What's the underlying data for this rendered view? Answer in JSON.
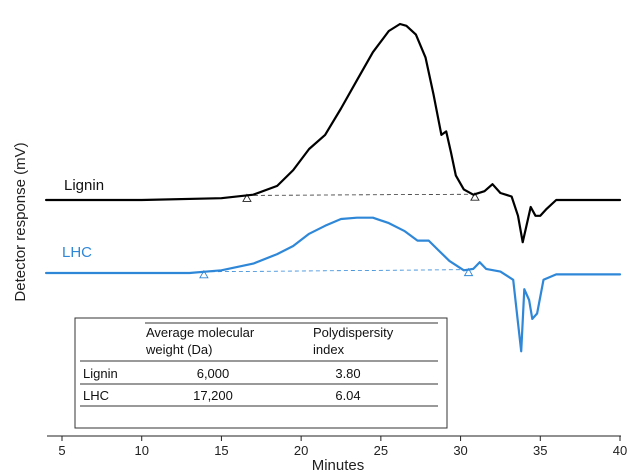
{
  "chart_data": {
    "type": "line",
    "xlabel": "Minutes",
    "ylabel": "Detector response (mV)",
    "xlim": [
      4,
      40
    ],
    "xticks": [
      5,
      10,
      15,
      20,
      25,
      30,
      35,
      40
    ],
    "grid": false,
    "series": [
      {
        "name": "Lignin",
        "color": "#000000",
        "x": [
          4,
          10,
          15,
          17,
          18.5,
          19.5,
          20.5,
          21.5,
          22.5,
          23.5,
          24.5,
          25.5,
          26.2,
          26.6,
          27.2,
          27.8,
          28.3,
          28.8,
          29.1,
          29.4,
          29.7,
          30.2,
          30.8,
          31.5,
          32,
          32.5,
          33.2,
          33.6,
          33.9,
          34.1,
          34.4,
          34.7,
          35.0,
          35.4,
          36,
          40
        ],
        "y": [
          0.0,
          0.0,
          0.01,
          0.03,
          0.08,
          0.17,
          0.29,
          0.37,
          0.52,
          0.68,
          0.84,
          0.96,
          1.0,
          0.99,
          0.94,
          0.81,
          0.6,
          0.37,
          0.39,
          0.27,
          0.14,
          0.06,
          0.03,
          0.05,
          0.09,
          0.04,
          0.02,
          -0.09,
          -0.24,
          -0.16,
          -0.04,
          -0.09,
          -0.09,
          -0.05,
          0.0,
          0.0
        ]
      },
      {
        "name": "LHC",
        "color": "#2f87d8",
        "x": [
          4,
          10,
          13,
          15,
          17,
          18.5,
          19.5,
          20.5,
          21.5,
          22.5,
          23.5,
          24.5,
          25.5,
          26.5,
          27.3,
          28,
          28.6,
          29.3,
          30.2,
          30.8,
          31.2,
          31.6,
          32.5,
          33.3,
          33.6,
          33.8,
          34.0,
          34.3,
          34.5,
          34.8,
          35.2,
          36,
          40
        ],
        "y": [
          0.0,
          0.0,
          0.0,
          0.02,
          0.07,
          0.14,
          0.2,
          0.29,
          0.35,
          0.4,
          0.41,
          0.41,
          0.37,
          0.31,
          0.24,
          0.24,
          0.17,
          0.09,
          0.02,
          0.03,
          0.08,
          0.03,
          0.01,
          -0.05,
          -0.37,
          -0.58,
          -0.12,
          -0.2,
          -0.34,
          -0.3,
          -0.05,
          -0.01,
          -0.01
        ]
      }
    ],
    "baselines": [
      {
        "series": "Lignin",
        "x": [
          16.6,
          30.9
        ]
      },
      {
        "series": "LHC",
        "x": [
          13.9,
          30.5
        ]
      }
    ],
    "table": {
      "header": [
        "",
        "Average molecular weight (Da)",
        "Polydispersity index"
      ],
      "rows": [
        {
          "label": "Lignin",
          "mw": "6,000",
          "pdi": "3.80",
          "color": "#000000"
        },
        {
          "label": "LHC",
          "mw": "17,200",
          "pdi": "6.04",
          "color": "#2f87d8"
        }
      ]
    }
  },
  "labels": {
    "lignin": "Lignin",
    "lhc": "LHC",
    "hdr_mw_1": "Average molecular",
    "hdr_mw_2": "weight (Da)",
    "hdr_pdi_1": "Polydispersity",
    "hdr_pdi_2": "index"
  }
}
